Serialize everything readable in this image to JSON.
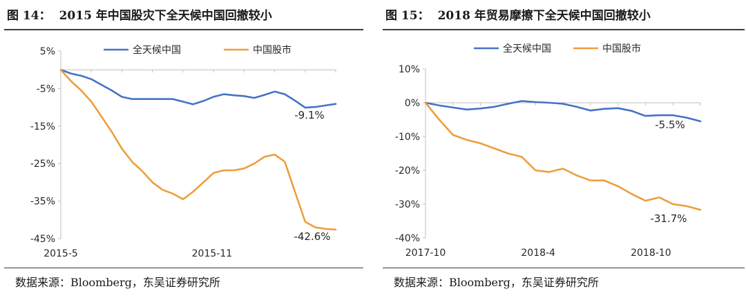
{
  "figures": [
    {
      "title_number": "图 14：",
      "title_text": "2015 年中国股灾下全天候中国回撤较小",
      "source": "数据来源：Bloomberg，东吴证券研究所"
    },
    {
      "title_number": "图 15：",
      "title_text": "2018 年贸易摩擦下全天候中国回撤较小",
      "source": "数据来源：Bloomberg，东吴证券研究所"
    }
  ],
  "colors": {
    "blue": "#4472C4",
    "orange": "#ED9E3B",
    "axis": "#BFBFBF",
    "text": "#262626"
  },
  "chart_data": [
    {
      "type": "line",
      "title": "",
      "ylim": [
        -45,
        5
      ],
      "ytick_values": [
        5,
        -5,
        -15,
        -25,
        -35,
        -45
      ],
      "ytick_labels": [
        "5%",
        "-5%",
        "-15%",
        "-25%",
        "-35%",
        "-45%"
      ],
      "xtick_labels": [
        "2015-5",
        "2015-11"
      ],
      "xtick_positions": [
        0,
        0.55
      ],
      "legend_position": "top",
      "end_labels": [
        "-9.1%",
        "-42.6%"
      ],
      "series": [
        {
          "name": "全天候中国",
          "color": "#4472C4",
          "values": [
            0,
            -1,
            -1.6,
            -2.5,
            -4,
            -5.5,
            -7.2,
            -7.8,
            -7.8,
            -7.8,
            -7.8,
            -7.8,
            -8.5,
            -9.2,
            -8.3,
            -7.2,
            -6.5,
            -6.8,
            -7,
            -7.5,
            -6.7,
            -5.8,
            -6.5,
            -8.2,
            -10.1,
            -9.9,
            -9.5,
            -9.1
          ]
        },
        {
          "name": "中国股市",
          "color": "#ED9E3B",
          "values": [
            0,
            -3,
            -5.5,
            -8.5,
            -12.5,
            -16.5,
            -21,
            -24.5,
            -27,
            -30,
            -32,
            -33,
            -34.5,
            -32.5,
            -30,
            -27.5,
            -26.8,
            -26.8,
            -26.3,
            -25,
            -23.2,
            -22.6,
            -24.5,
            -32.5,
            -40.5,
            -42,
            -42.4,
            -42.6
          ]
        }
      ]
    },
    {
      "type": "line",
      "title": "",
      "ylim": [
        -40,
        10
      ],
      "ytick_values": [
        10,
        0,
        -10,
        -20,
        -30,
        -40
      ],
      "ytick_labels": [
        "10%",
        "0%",
        "-10%",
        "-20%",
        "-30%",
        "-40%"
      ],
      "xtick_labels": [
        "2017-10",
        "2018-4",
        "2018-10"
      ],
      "xtick_positions": [
        0,
        0.41,
        0.82
      ],
      "legend_position": "top",
      "end_labels": [
        "-5.5%",
        "-31.7%"
      ],
      "series": [
        {
          "name": "全天候中国",
          "color": "#4472C4",
          "values": [
            0,
            -0.8,
            -1.4,
            -2,
            -1.7,
            -1.2,
            -0.3,
            0.5,
            0.2,
            0,
            -0.3,
            -1.2,
            -2.3,
            -1.8,
            -1.6,
            -2.4,
            -3.9,
            -3.7,
            -3.7,
            -4.4,
            -5.5
          ]
        },
        {
          "name": "中国股市",
          "color": "#ED9E3B",
          "values": [
            0,
            -5,
            -9.5,
            -11,
            -12,
            -13.5,
            -15,
            -16,
            -20,
            -20.5,
            -19.5,
            -21.5,
            -23,
            -23,
            -24.7,
            -27,
            -29,
            -28,
            -30,
            -30.6,
            -31.7
          ]
        }
      ]
    }
  ]
}
